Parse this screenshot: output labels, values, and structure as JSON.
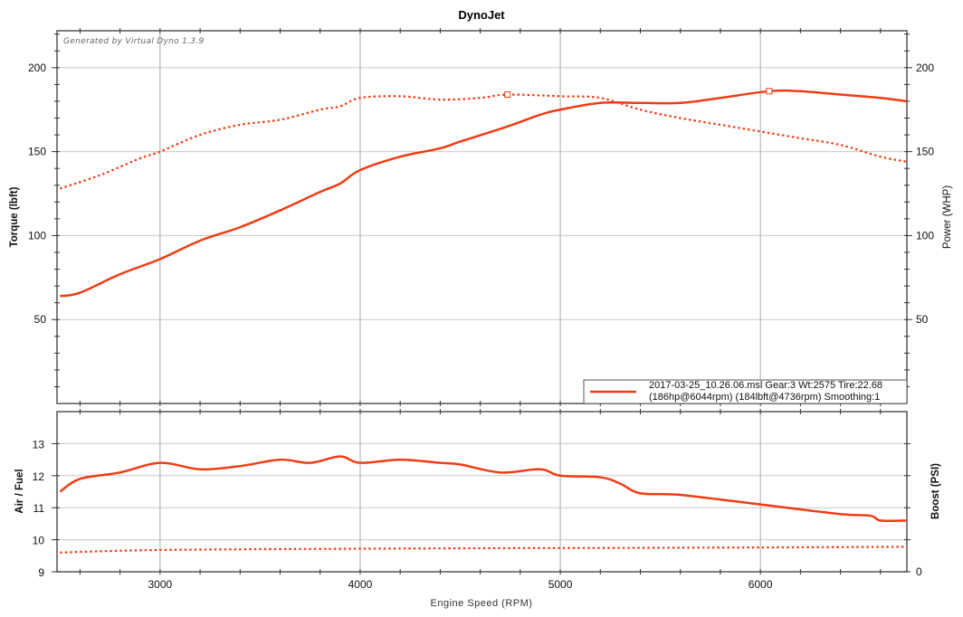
{
  "chart_data": [
    {
      "type": "line",
      "title": "DynoJet",
      "watermark": "Generated by Virtual Dyno 1.3.9",
      "xlabel": "Engine Speed (RPM)",
      "ylabel": "Torque (lbft)",
      "ylabel_right": "Power (WHP)",
      "xlim": [
        2485,
        6732
      ],
      "ylim": [
        0,
        222
      ],
      "ylim_right": [
        0,
        222
      ],
      "xticks": [
        3000,
        4000,
        5000,
        6000
      ],
      "yticks": [
        50,
        100,
        150,
        200
      ],
      "yticks_right": [
        50,
        100,
        150,
        200
      ],
      "grid": true,
      "legend": {
        "position": "lower right",
        "entries": [
          {
            "line1": "2017-03-25_10.26.06.msl Gear:3 Wt:2575 Tire:22.68",
            "line2": "(186hp@6044rpm) (184lbft@4736rpm) Smoothing:1"
          }
        ]
      },
      "series": [
        {
          "name": "Power (WHP)",
          "style": "solid",
          "color": "#f03c14",
          "peak": {
            "rpm": 6044,
            "value": 186
          },
          "x": [
            2500,
            2600,
            2800,
            3000,
            3200,
            3400,
            3600,
            3800,
            3900,
            4000,
            4200,
            4400,
            4500,
            4736,
            4900,
            5000,
            5200,
            5400,
            5600,
            5800,
            6044,
            6200,
            6400,
            6600,
            6732
          ],
          "values": [
            64,
            66,
            77,
            86,
            97,
            105,
            115,
            126,
            131,
            139,
            147,
            152,
            156,
            165,
            172,
            175,
            179,
            179,
            179,
            182,
            186,
            186,
            184,
            182,
            180
          ]
        },
        {
          "name": "Torque (lbft)",
          "style": "dotted",
          "color": "#f03c14",
          "peak": {
            "rpm": 4736,
            "value": 184
          },
          "x": [
            2500,
            2700,
            2900,
            3000,
            3200,
            3400,
            3600,
            3800,
            3900,
            4000,
            4200,
            4400,
            4600,
            4736,
            5000,
            5200,
            5400,
            5600,
            5800,
            6000,
            6200,
            6400,
            6600,
            6732
          ],
          "values": [
            128,
            136,
            146,
            150,
            160,
            166,
            169,
            175,
            177,
            182,
            183,
            181,
            182,
            184,
            183,
            182,
            175,
            170,
            166,
            162,
            158,
            154,
            147,
            144
          ]
        }
      ]
    },
    {
      "type": "line",
      "xlabel": "Engine Speed (RPM)",
      "ylabel": "Air / Fuel",
      "ylabel_right": "Boost (PSI)",
      "xlim": [
        2485,
        6732
      ],
      "ylim": [
        9,
        14
      ],
      "xticks": [
        3000,
        4000,
        5000,
        6000
      ],
      "yticks": [
        9,
        10,
        11,
        12,
        13
      ],
      "yticks_right": [
        0
      ],
      "grid": true,
      "series": [
        {
          "name": "Air / Fuel",
          "style": "solid",
          "color": "#f03c14",
          "x": [
            2500,
            2600,
            2800,
            3000,
            3200,
            3400,
            3600,
            3750,
            3900,
            4000,
            4200,
            4400,
            4500,
            4700,
            4900,
            5000,
            5200,
            5300,
            5400,
            5600,
            6000,
            6400,
            6550,
            6600,
            6732
          ],
          "values": [
            11.5,
            11.9,
            12.1,
            12.4,
            12.2,
            12.3,
            12.5,
            12.4,
            12.6,
            12.4,
            12.5,
            12.4,
            12.35,
            12.1,
            12.2,
            12.0,
            11.95,
            11.75,
            11.45,
            11.4,
            11.1,
            10.8,
            10.75,
            10.6,
            10.6
          ]
        },
        {
          "name": "Air / Fuel (dotted)",
          "style": "dotted",
          "color": "#f03c14",
          "x": [
            2500,
            3000,
            4000,
            5000,
            6000,
            6732
          ],
          "values": [
            9.6,
            9.68,
            9.72,
            9.74,
            9.76,
            9.78
          ]
        }
      ]
    }
  ],
  "labels": {
    "title": "DynoJet",
    "watermark": "Generated by Virtual Dyno 1.3.9",
    "torque_axis": "Torque (lbft)",
    "power_axis": "Power (WHP)",
    "afr_axis": "Air / Fuel",
    "boost_axis": "Boost (PSI)",
    "x_axis": "Engine Speed (RPM)",
    "legend_line1": "2017-03-25_10.26.06.msl Gear:3 Wt:2575 Tire:22.68",
    "legend_line2": "(186hp@6044rpm) (184lbft@4736rpm) Smoothing:1"
  },
  "colors": {
    "series": "#f03c14",
    "grid": "#c8c8c8",
    "grid_major_x": "#a8a8a8",
    "frame": "#555555"
  }
}
